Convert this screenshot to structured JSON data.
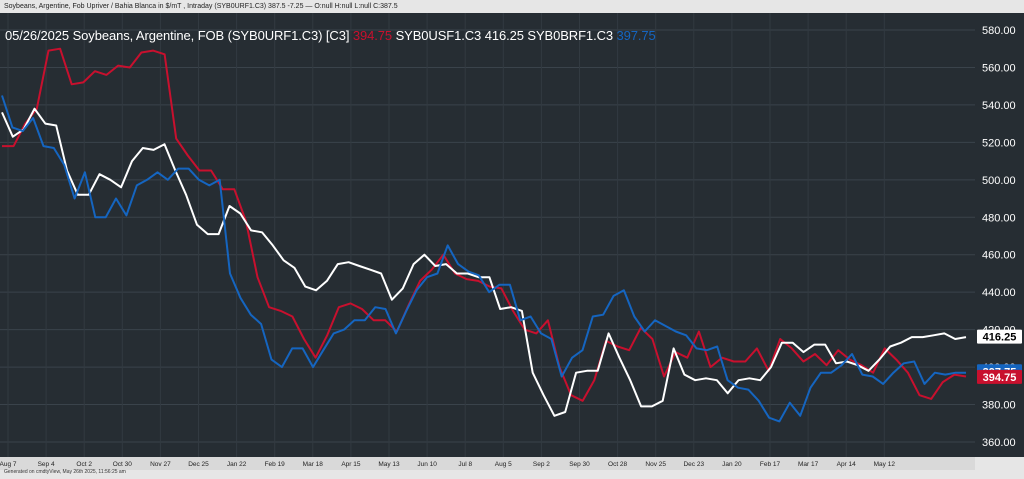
{
  "header_text": "Soybeans, Argentine, Fob Upriver / Bahia Blanca in $/mT , Intraday (SYB0URF1.C3) 387.5 -7.25 — O:null H:null L:null C:387.5",
  "legend": {
    "date": "05/26/2025",
    "title": "Soybeans, Argentine, FOB (SYB0URF1.C3) [C3]",
    "red_value": "394.75",
    "white_label": "SYB0USF1.C3",
    "white_value": "416.25",
    "blue_label": "SYB0BRF1.C3",
    "blue_value": "397.75"
  },
  "footer_text": "Generated on cmdtyView, May 26th 2025, 11:56:25 am",
  "colors": {
    "red": "#c8102e",
    "white": "#ffffff",
    "blue": "#1565c0",
    "background": "#262d33"
  },
  "chart_data": {
    "type": "line",
    "ylim": [
      350,
      590
    ],
    "yticks": [
      "360.00",
      "380.00",
      "400.00",
      "420.00",
      "440.00",
      "460.00",
      "480.00",
      "500.00",
      "520.00",
      "540.00",
      "560.00",
      "580.00"
    ],
    "xticks": [
      "Aug 7",
      "Sep 4",
      "Oct 2",
      "Oct 30",
      "Nov 27",
      "Dec 25",
      "Jan 22",
      "Feb 19",
      "Mar 18",
      "Apr 15",
      "May 13",
      "Jun 10",
      "Jul 8",
      "Aug 5",
      "Sep 2",
      "Sep 30",
      "Oct 28",
      "Nov 25",
      "Dec 23",
      "Jan 20",
      "Feb 17",
      "Mar 17",
      "Apr 14",
      "May 12"
    ],
    "last_values": [
      "416.25",
      "397.75",
      "394.75"
    ],
    "series": [
      {
        "name": "SYB0URF1.C3",
        "color": "#c8102e",
        "values": [
          518,
          518,
          530,
          538,
          569,
          570,
          551,
          552,
          558,
          556,
          561,
          560,
          568,
          569,
          567,
          522,
          513,
          505,
          505,
          495,
          495,
          478,
          448,
          432,
          430,
          427,
          415,
          405,
          417,
          432,
          434,
          431,
          425,
          425,
          419,
          433,
          446,
          452,
          460,
          450,
          447,
          446,
          443,
          442,
          430,
          420,
          418,
          425,
          400,
          385,
          382,
          393,
          414,
          411,
          409,
          421,
          415,
          395,
          408,
          405,
          419,
          400,
          405,
          403,
          403,
          410,
          398,
          415,
          410,
          403,
          407,
          401,
          409,
          404,
          401,
          397,
          410,
          404,
          397,
          385,
          383,
          392,
          396,
          395
        ]
      },
      {
        "name": "SYB0USF1.C3",
        "color": "#ffffff",
        "values": [
          536,
          523,
          527,
          538,
          530,
          529,
          505,
          492,
          492,
          503,
          500,
          496,
          510,
          517,
          516,
          519,
          505,
          492,
          476,
          471,
          471,
          486,
          482,
          473,
          472,
          465,
          457,
          453,
          443,
          441,
          446,
          455,
          456,
          454,
          452,
          450,
          436,
          442,
          455,
          460,
          454,
          455,
          450,
          450,
          448,
          448,
          431,
          432,
          430,
          397,
          385,
          374,
          376,
          397,
          398,
          398,
          418,
          405,
          393,
          379,
          379,
          382,
          410,
          396,
          393,
          394,
          393,
          386,
          393,
          394,
          393,
          400,
          413,
          413,
          408,
          412,
          412,
          402,
          403,
          401,
          398,
          404,
          411,
          413,
          416,
          416,
          417,
          418,
          415,
          416
        ]
      },
      {
        "name": "SYB0BRF1.C3",
        "color": "#1565c0",
        "values": [
          545,
          528,
          526,
          533,
          518,
          517,
          508,
          490,
          504,
          480,
          480,
          490,
          481,
          497,
          500,
          504,
          500,
          506,
          506,
          500,
          497,
          500,
          450,
          437,
          428,
          423,
          404,
          400,
          410,
          410,
          400,
          409,
          418,
          420,
          425,
          425,
          432,
          431,
          418,
          430,
          441,
          448,
          450,
          465,
          455,
          451,
          449,
          440,
          444,
          444,
          425,
          427,
          418,
          415,
          395,
          405,
          409,
          427,
          428,
          438,
          441,
          427,
          419,
          425,
          422,
          419,
          417,
          410,
          409,
          411,
          393,
          389,
          388,
          382,
          373,
          371,
          381,
          374,
          389,
          397,
          397,
          401,
          407,
          396,
          395,
          391,
          397,
          402,
          403,
          391,
          397,
          396,
          397,
          397
        ]
      }
    ]
  }
}
